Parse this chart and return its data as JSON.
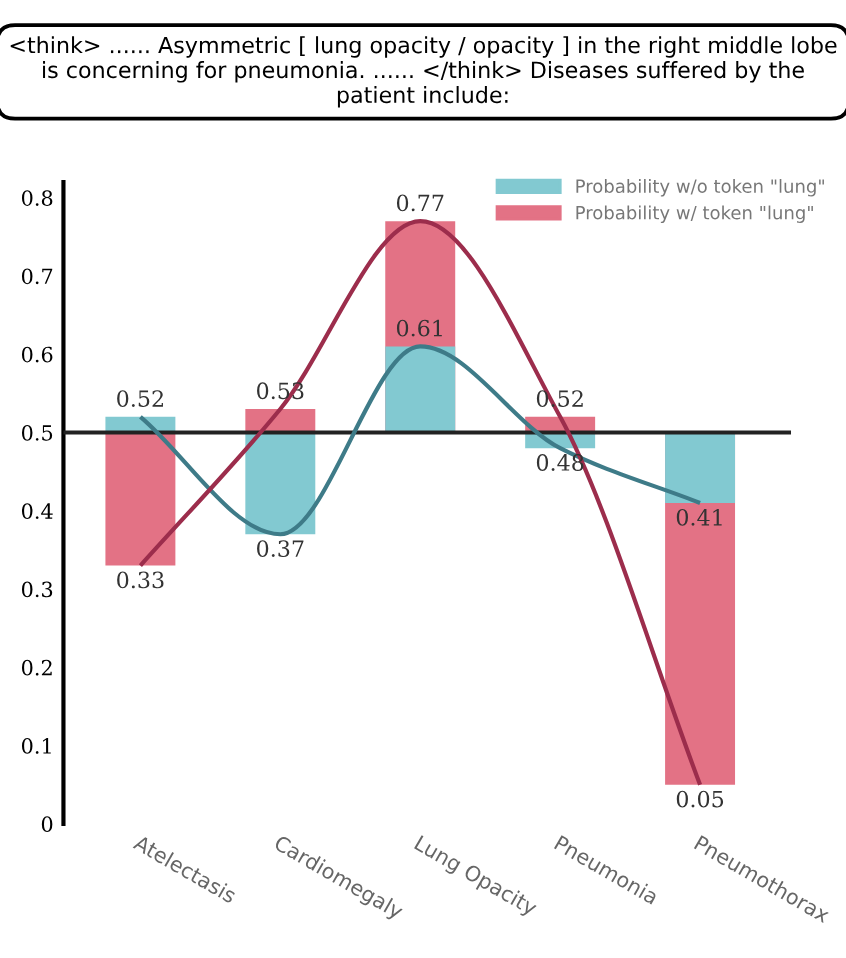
{
  "chart_data": {
    "type": "bar",
    "title": "<think> ...... Asymmetric [ lung opacity / opacity ] in the right middle lobe is concerning for pneumonia. ...... </think> Diseases suffered by the patient include:",
    "categories": [
      "Atelectasis",
      "Cardiomegaly",
      "Lung Opacity",
      "Pneumonia",
      "Pneumothorax"
    ],
    "series": [
      {
        "name": "Probability w/ token \"lung\"",
        "color": "#e37285",
        "base": [
          0.5,
          0.5,
          0.5,
          0.5,
          0.5
        ],
        "values": [
          -0.17,
          0.03,
          0.27,
          0.02,
          -0.45
        ],
        "value_labels": [
          "0.33",
          "0.53",
          "0.77",
          "0.52",
          "0.05"
        ]
      },
      {
        "name": "Probability w/o token \"lung\"",
        "color": "#82c9d1",
        "base": [
          0.5,
          0.5,
          0.5,
          0.5,
          0.5
        ],
        "values": [
          0.02,
          -0.13,
          0.11,
          -0.02,
          -0.09
        ],
        "value_labels": [
          "0.52",
          "0.37",
          "0.61",
          "0.48",
          "0.41"
        ]
      },
      {
        "type": "line",
        "color": "#3e7b88",
        "values": [
          0.52,
          0.37,
          0.61,
          0.48,
          0.41
        ]
      },
      {
        "type": "line",
        "color": "#9c2d4c",
        "values": [
          0.33,
          0.53,
          0.77,
          0.52,
          0.05
        ]
      }
    ],
    "ylim": [
      0,
      0.82
    ],
    "yticks": [
      0,
      0.1,
      0.2,
      0.3,
      0.4,
      0.5,
      0.6,
      0.7,
      0.8
    ],
    "ref_lines": [
      {
        "axis": "y",
        "value": 0.5,
        "color": "#222222"
      }
    ],
    "grid": false,
    "legend": "top right"
  }
}
